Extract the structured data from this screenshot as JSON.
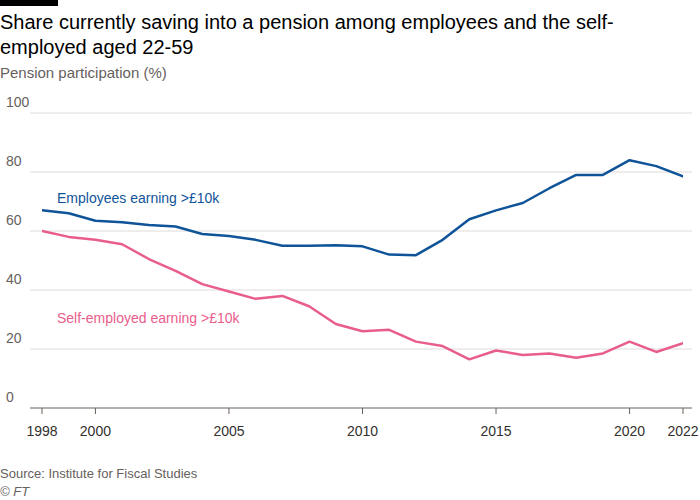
{
  "chart_data": {
    "type": "line",
    "title": "Share currently saving into a pension among employees and the self-employed aged 22-59",
    "subtitle": "Pension participation (%)",
    "source": "Source: Institute for Fiscal Studies",
    "credit": "© FT",
    "x": [
      1998,
      1999,
      2000,
      2001,
      2002,
      2003,
      2004,
      2005,
      2006,
      2007,
      2008,
      2009,
      2010,
      2011,
      2012,
      2013,
      2014,
      2015,
      2016,
      2017,
      2018,
      2019,
      2020,
      2021,
      2022
    ],
    "series": [
      {
        "name": "Employees earning >£10k",
        "color": "#0f5499",
        "values": [
          67,
          66,
          63.5,
          63,
          62,
          61.5,
          59,
          58.3,
          57,
          55,
          55,
          55.2,
          54.8,
          52,
          51.8,
          57,
          64,
          67,
          69.5,
          74.5,
          79,
          79,
          84,
          82,
          78.5
        ]
      },
      {
        "name": "Self-employed earning >£10k",
        "color": "#e95d8c",
        "values": [
          60,
          58,
          57,
          55.5,
          50.5,
          46.5,
          42,
          39.5,
          37,
          38,
          34.5,
          28.5,
          26,
          26.5,
          22.5,
          21,
          16.5,
          19.5,
          18,
          18.5,
          17,
          18.5,
          22.5,
          19,
          22
        ]
      }
    ],
    "xlim": [
      1998,
      2022
    ],
    "xticks": [
      1998,
      2000,
      2005,
      2010,
      2015,
      2020,
      2022
    ],
    "ylim": [
      0,
      100
    ],
    "yticks": [
      0,
      20,
      40,
      60,
      80,
      100
    ],
    "grid": true
  }
}
